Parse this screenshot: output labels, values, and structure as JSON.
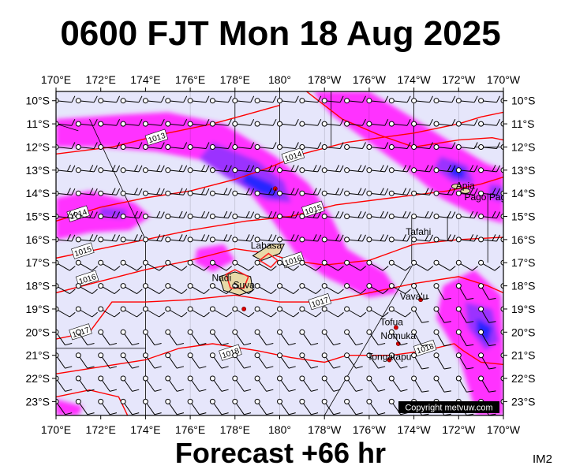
{
  "header": {
    "title": "0600 FJT Mon 18 Aug 2025",
    "forecast": "Forecast +66 hr",
    "chart_id": "IM2",
    "copyright": "Copyright metvuw.com"
  },
  "axes": {
    "lon_labels": [
      "170°E",
      "172°E",
      "174°E",
      "176°E",
      "178°E",
      "180°",
      "178°W",
      "176°W",
      "174°W",
      "172°W",
      "170°W"
    ],
    "lat_labels": [
      "10°S",
      "11°S",
      "12°S",
      "13°S",
      "14°S",
      "15°S",
      "16°S",
      "17°S",
      "18°S",
      "19°S",
      "20°S",
      "21°S",
      "22°S",
      "23°S"
    ]
  },
  "isobars": [
    {
      "label": "1013",
      "lon": 174.5,
      "lat": 11.6
    },
    {
      "label": "1014",
      "lon": 180.6,
      "lat": 12.4
    },
    {
      "label": "1014",
      "lon": 171.0,
      "lat": 14.9
    },
    {
      "label": "1015",
      "lon": 181.5,
      "lat": 14.7
    },
    {
      "label": "1015",
      "lon": 171.2,
      "lat": 16.5
    },
    {
      "label": "1016",
      "lon": 180.6,
      "lat": 16.9
    },
    {
      "label": "1016",
      "lon": 171.4,
      "lat": 17.7
    },
    {
      "label": "1017",
      "lon": 181.8,
      "lat": 18.7
    },
    {
      "label": "1017",
      "lon": 171.1,
      "lat": 20.0
    },
    {
      "label": "1018",
      "lon": 177.8,
      "lat": 20.9
    },
    {
      "label": "1018",
      "lon": 186.5,
      "lat": 20.7
    }
  ],
  "places": [
    {
      "name": "Labasa",
      "lon": 179.4,
      "lat": 16.4
    },
    {
      "name": "Nadi",
      "lon": 177.4,
      "lat": 17.8
    },
    {
      "name": "Suva",
      "lon": 178.4,
      "lat": 18.1
    },
    {
      "name": "Apia",
      "lon": 188.3,
      "lat": 13.8
    },
    {
      "name": "Pago Pago",
      "lon": 189.3,
      "lat": 14.3
    },
    {
      "name": "Tafahi",
      "lon": 186.2,
      "lat": 15.8
    },
    {
      "name": "Vava'u",
      "lon": 186.0,
      "lat": 18.6
    },
    {
      "name": "Tofua",
      "lon": 185.0,
      "lat": 19.7
    },
    {
      "name": "Nomuka",
      "lon": 185.3,
      "lat": 20.3
    },
    {
      "name": "Tongatapu",
      "lon": 184.9,
      "lat": 21.2
    }
  ],
  "wind": {
    "prevailing": "east-southeasterly trade winds"
  },
  "colors": {
    "background": "#e6e6fb",
    "rain_light": "#ff33ff",
    "rain_mid": "#9b30ff",
    "rain_heavy": "#2828ff",
    "isobar": "#ff0000"
  }
}
